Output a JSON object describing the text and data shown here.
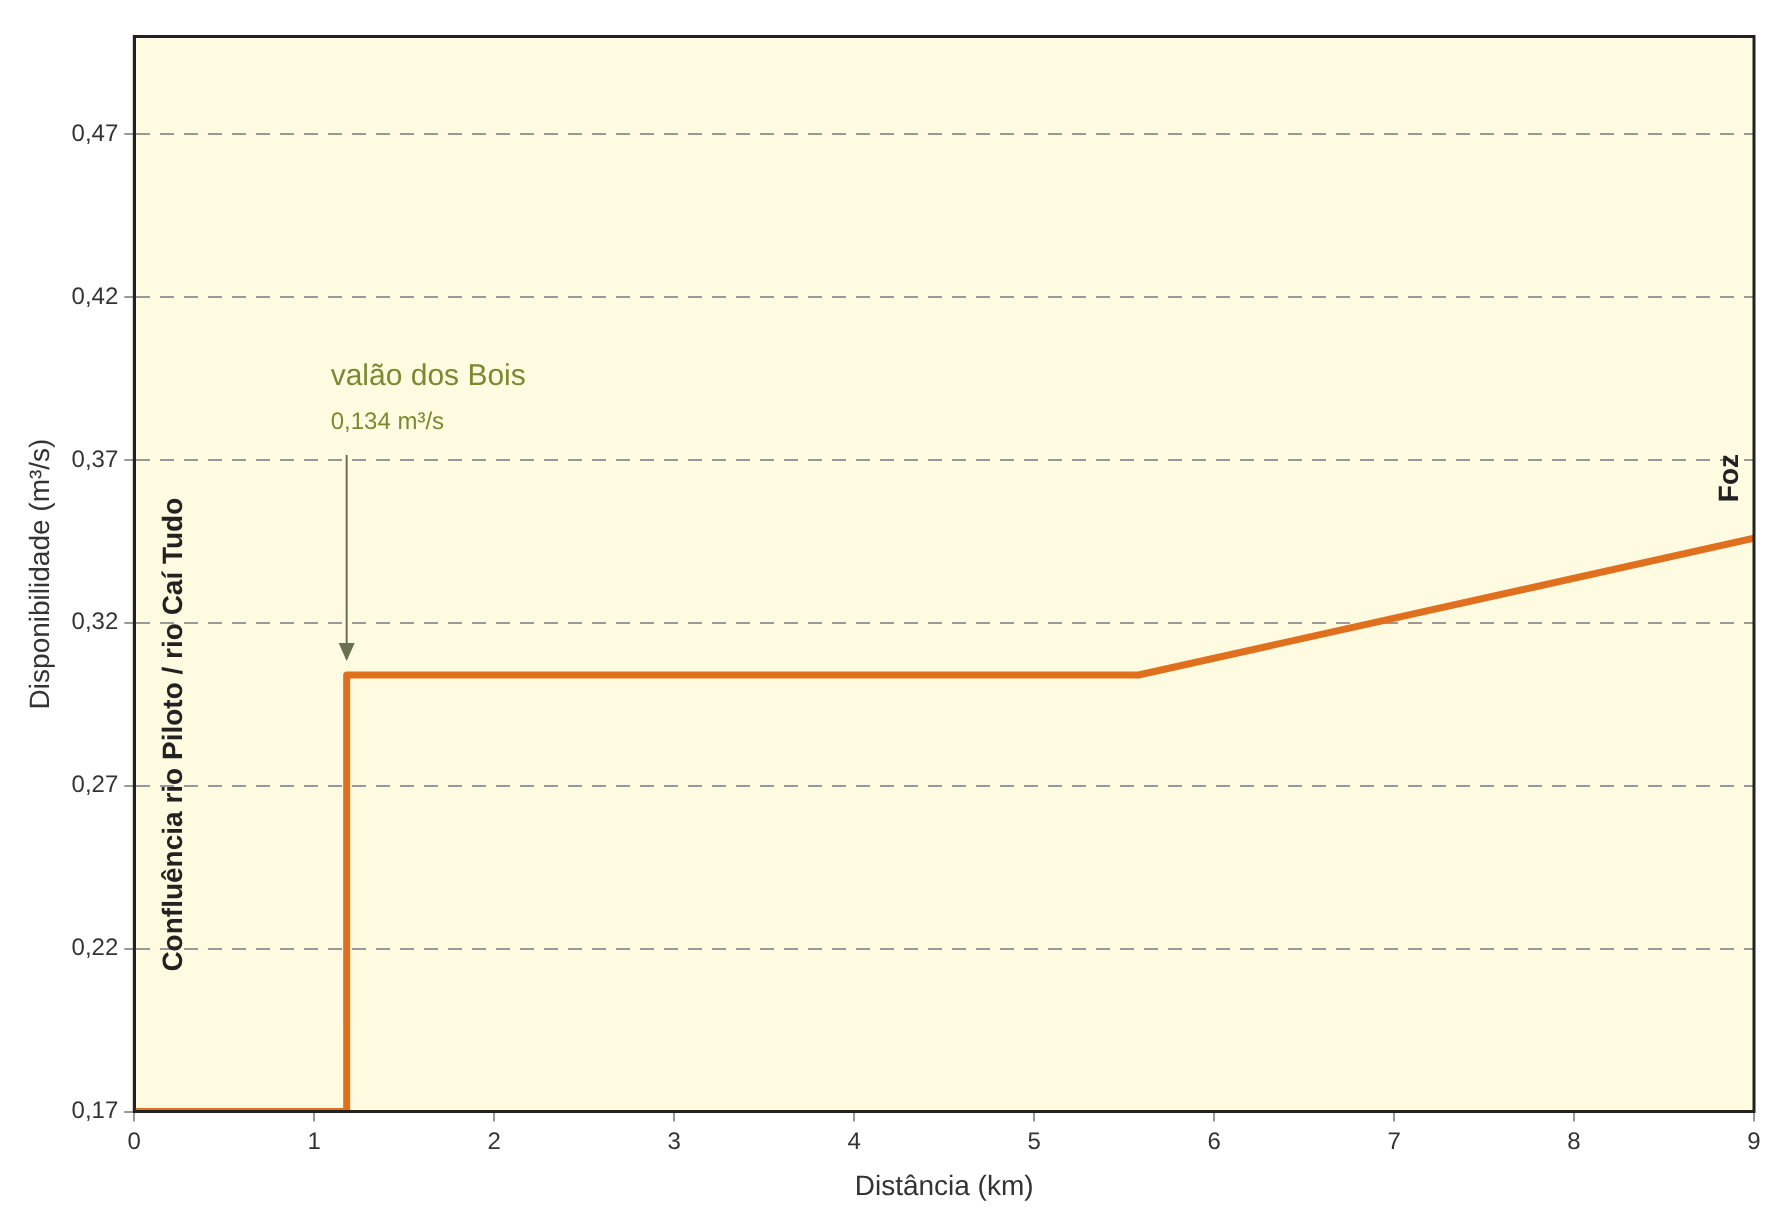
{
  "chart_data": {
    "type": "line",
    "xlabel": "Distância (km)",
    "ylabel": "Disponibilidade (m³/s)",
    "x": [
      0,
      1.18,
      1.18,
      5.58,
      9
    ],
    "series": [
      {
        "color": "#e0701e",
        "values": [
          0.17,
          0.17,
          0.304,
          0.304,
          0.346
        ]
      }
    ],
    "xlim": [
      0,
      9
    ],
    "xticks": [
      0,
      1,
      2,
      3,
      4,
      5,
      6,
      7,
      8,
      9
    ],
    "ylim": [
      0.17,
      0.5
    ],
    "yticks": [
      {
        "value": 0.17,
        "label": "0,17"
      },
      {
        "value": 0.22,
        "label": "0,22"
      },
      {
        "value": 0.27,
        "label": "0,27"
      },
      {
        "value": 0.32,
        "label": "0,32"
      },
      {
        "value": 0.37,
        "label": "0,37"
      },
      {
        "value": 0.42,
        "label": "0,42"
      },
      {
        "value": 0.47,
        "label": "0,47"
      }
    ],
    "grid": "y",
    "legend": false,
    "marker": "none",
    "line_style": "solid",
    "annotations": [
      "valão dos Bois",
      {
        "text": "0,134 m³/s",
        "x": 1.18,
        "y": 0.304
      },
      "Confluência rio Piloto / rio Caí Tudo",
      {
        "text": "Foz",
        "x": 9,
        "y": 0.346
      }
    ]
  }
}
